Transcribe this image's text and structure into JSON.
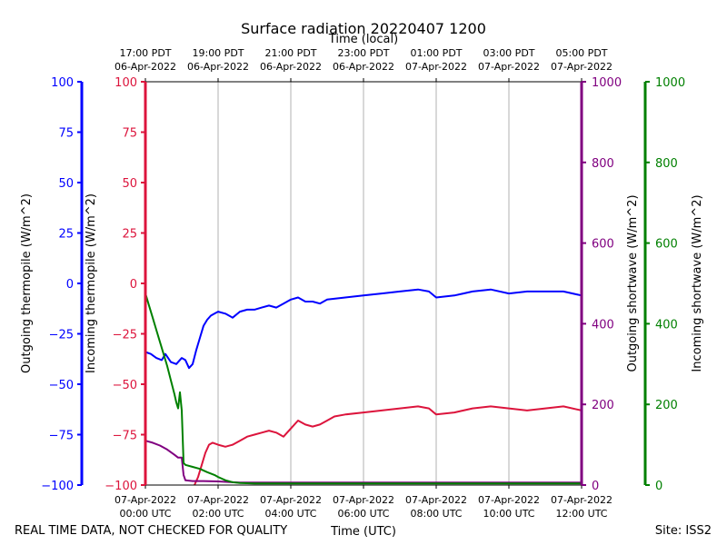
{
  "chart_data": {
    "type": "line",
    "title": "Surface radiation 20220407 1200",
    "top_axis_title": "Time (local)",
    "xlabel": "Time (UTC)",
    "footer_left": "REAL TIME DATA, NOT CHECKED FOR QUALITY",
    "footer_right": "Site: ISS2",
    "xlim": [
      0,
      12
    ],
    "grid": true,
    "x_ticks_utc": [
      {
        "x": 0,
        "line1": "07-Apr-2022",
        "line2": "00:00 UTC"
      },
      {
        "x": 2,
        "line1": "07-Apr-2022",
        "line2": "02:00 UTC"
      },
      {
        "x": 4,
        "line1": "07-Apr-2022",
        "line2": "04:00 UTC"
      },
      {
        "x": 6,
        "line1": "07-Apr-2022",
        "line2": "06:00 UTC"
      },
      {
        "x": 8,
        "line1": "07-Apr-2022",
        "line2": "08:00 UTC"
      },
      {
        "x": 10,
        "line1": "07-Apr-2022",
        "line2": "10:00 UTC"
      },
      {
        "x": 12,
        "line1": "07-Apr-2022",
        "line2": "12:00 UTC"
      }
    ],
    "x_ticks_local": [
      {
        "x": 0,
        "line1": "17:00 PDT",
        "line2": "06-Apr-2022"
      },
      {
        "x": 2,
        "line1": "19:00 PDT",
        "line2": "06-Apr-2022"
      },
      {
        "x": 4,
        "line1": "21:00 PDT",
        "line2": "06-Apr-2022"
      },
      {
        "x": 6,
        "line1": "23:00 PDT",
        "line2": "06-Apr-2022"
      },
      {
        "x": 8,
        "line1": "01:00 PDT",
        "line2": "07-Apr-2022"
      },
      {
        "x": 10,
        "line1": "03:00 PDT",
        "line2": "07-Apr-2022"
      },
      {
        "x": 12,
        "line1": "05:00 PDT",
        "line2": "07-Apr-2022"
      }
    ],
    "axes": {
      "outgoing_thermopile": {
        "label": "Outgoing thermopile (W/m^2)",
        "color": "#0000ff",
        "ylim": [
          -100,
          100
        ],
        "ticks": [
          -100,
          -75,
          -50,
          -25,
          0,
          25,
          50,
          75,
          100
        ]
      },
      "incoming_thermopile": {
        "label": "Incoming thermopile (W/m^2)",
        "color": "#dc143c",
        "ylim": [
          -100,
          100
        ],
        "ticks": [
          -100,
          -75,
          -50,
          -25,
          0,
          25,
          50,
          75,
          100
        ]
      },
      "outgoing_shortwave": {
        "label": "Outgoing shortwave (W/m^2)",
        "color": "#800080",
        "ylim": [
          0,
          1000
        ],
        "ticks": [
          0,
          200,
          400,
          600,
          800,
          1000
        ]
      },
      "incoming_shortwave": {
        "label": "Incoming shortwave (W/m^2)",
        "color": "#008000",
        "ylim": [
          0,
          1000
        ],
        "ticks": [
          0,
          200,
          400,
          600,
          800,
          1000
        ]
      }
    },
    "series": [
      {
        "axis": "outgoing_thermopile",
        "color": "#0000ff",
        "x": [
          0,
          0.15,
          0.3,
          0.45,
          0.55,
          0.7,
          0.85,
          1.0,
          1.1,
          1.2,
          1.3,
          1.4,
          1.5,
          1.6,
          1.7,
          1.8,
          1.9,
          2.0,
          2.2,
          2.4,
          2.6,
          2.8,
          3.0,
          3.2,
          3.4,
          3.6,
          3.8,
          4.0,
          4.2,
          4.4,
          4.6,
          4.8,
          5.0,
          5.5,
          6.0,
          6.5,
          7.0,
          7.5,
          7.8,
          8.0,
          8.5,
          9.0,
          9.5,
          10.0,
          10.5,
          11.0,
          11.5,
          12.0
        ],
        "y": [
          -34,
          -35,
          -37,
          -38,
          -35,
          -39,
          -40,
          -37,
          -38,
          -42,
          -40,
          -33,
          -27,
          -21,
          -18,
          -16,
          -15,
          -14,
          -15,
          -17,
          -14,
          -13,
          -13,
          -12,
          -11,
          -12,
          -10,
          -8,
          -7,
          -9,
          -9,
          -10,
          -8,
          -7,
          -6,
          -5,
          -4,
          -3,
          -4,
          -7,
          -6,
          -4,
          -3,
          -5,
          -4,
          -4,
          -4,
          -6
        ]
      },
      {
        "axis": "incoming_thermopile",
        "color": "#dc143c",
        "x": [
          1.35,
          1.45,
          1.55,
          1.65,
          1.75,
          1.85,
          2.0,
          2.2,
          2.4,
          2.6,
          2.8,
          3.0,
          3.2,
          3.4,
          3.6,
          3.8,
          4.0,
          4.2,
          4.4,
          4.6,
          4.8,
          5.0,
          5.2,
          5.5,
          6.0,
          6.5,
          7.0,
          7.5,
          7.8,
          8.0,
          8.5,
          9.0,
          9.5,
          10.0,
          10.5,
          11.0,
          11.5,
          12.0
        ],
        "y": [
          -100,
          -96,
          -90,
          -84,
          -80,
          -79,
          -80,
          -81,
          -80,
          -78,
          -76,
          -75,
          -74,
          -73,
          -74,
          -76,
          -72,
          -68,
          -70,
          -71,
          -70,
          -68,
          -66,
          -65,
          -64,
          -63,
          -62,
          -61,
          -62,
          -65,
          -64,
          -62,
          -61,
          -62,
          -63,
          -62,
          -61,
          -63
        ]
      },
      {
        "axis": "outgoing_shortwave",
        "color": "#800080",
        "x": [
          0,
          0.2,
          0.4,
          0.6,
          0.8,
          0.9,
          1.0,
          1.05,
          1.1,
          1.3,
          1.6,
          2.0,
          2.4,
          2.6,
          3.0,
          4.0,
          5.0,
          6.0,
          7.0,
          8.0,
          9.0,
          10.0,
          11.0,
          12.0
        ],
        "y": [
          110,
          105,
          98,
          88,
          75,
          68,
          68,
          25,
          12,
          10,
          10,
          9,
          7,
          6,
          6,
          6,
          6,
          6,
          6,
          6,
          6,
          6,
          6,
          6
        ]
      },
      {
        "axis": "incoming_shortwave",
        "color": "#008000",
        "x": [
          0,
          0.1,
          0.2,
          0.3,
          0.4,
          0.5,
          0.6,
          0.7,
          0.8,
          0.85,
          0.9,
          0.95,
          1.0,
          1.05,
          1.1,
          1.3,
          1.5,
          1.7,
          1.9,
          2.0,
          2.2,
          2.4,
          2.6,
          3.0,
          4.0,
          5.0,
          6.0,
          7.0,
          8.0,
          9.0,
          10.0,
          11.0,
          12.0
        ],
        "y": [
          475,
          445,
          415,
          385,
          355,
          325,
          295,
          260,
          225,
          205,
          190,
          230,
          185,
          55,
          50,
          45,
          40,
          32,
          25,
          20,
          12,
          7,
          5,
          4,
          4,
          4,
          4,
          4,
          4,
          4,
          4,
          4,
          4
        ]
      }
    ]
  }
}
